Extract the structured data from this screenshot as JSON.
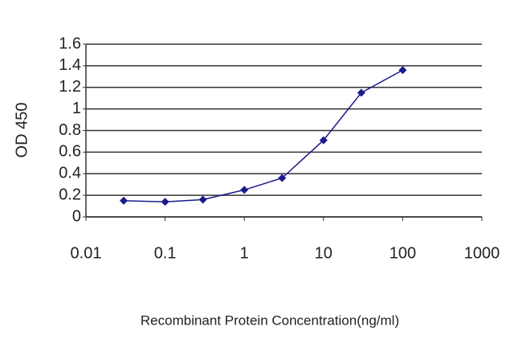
{
  "chart_data": {
    "type": "line",
    "x_label": "Recombinant Protein Concentration(ng/ml)",
    "y_label": "OD 450",
    "x": [
      0.03,
      0.1,
      0.3,
      1,
      3,
      10,
      30,
      100
    ],
    "series": [
      {
        "color": "#1a1a8c",
        "values": [
          0.15,
          0.14,
          0.16,
          0.25,
          0.36,
          0.71,
          1.15,
          1.36
        ]
      }
    ],
    "xlim": [
      0.01,
      1000
    ],
    "xticks": [
      0.01,
      0.1,
      1,
      10,
      100,
      1000
    ],
    "xscale": "log",
    "ylim": [
      0,
      1.6
    ],
    "yticks": [
      0,
      0.2,
      0.4,
      0.6,
      0.8,
      1,
      1.2,
      1.4,
      1.6
    ],
    "grid": true
  }
}
